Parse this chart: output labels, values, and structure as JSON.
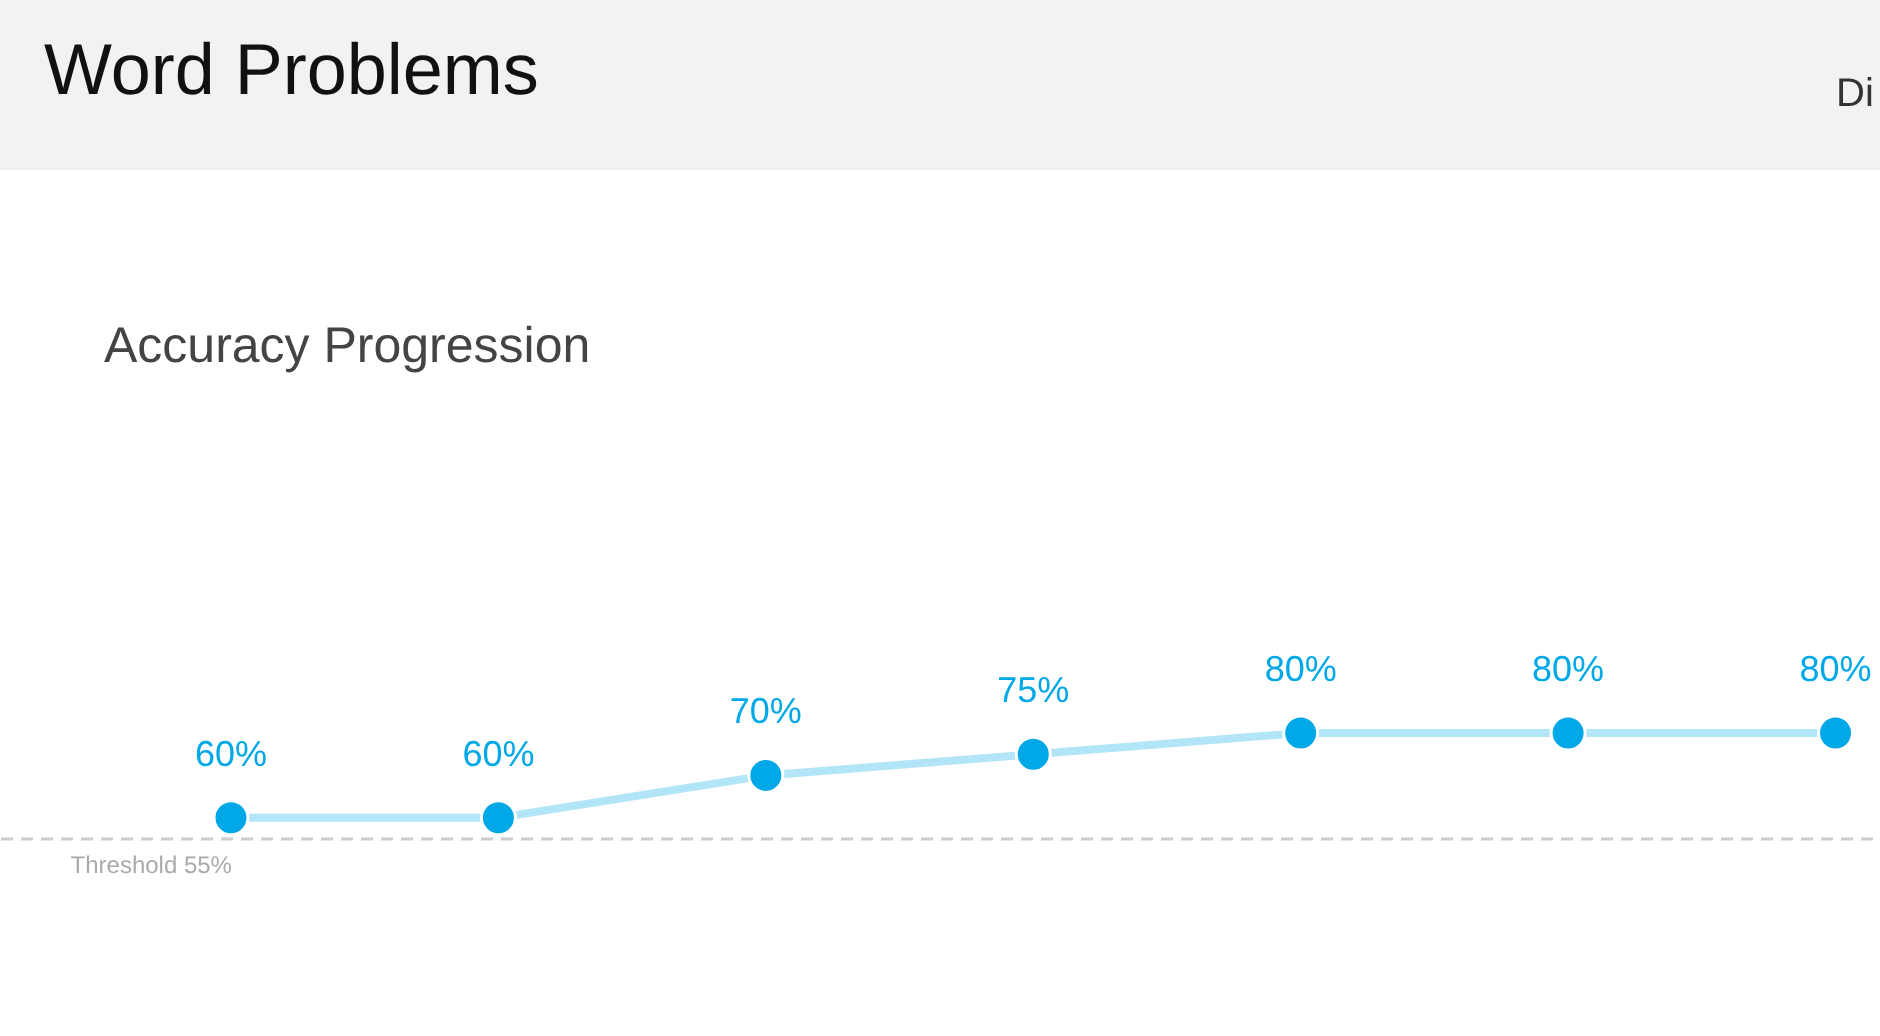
{
  "chart_data": {
    "type": "line",
    "title": "Word Problems",
    "subtitle": "Accuracy Progression",
    "annotations": [
      "Di"
    ],
    "categories": [
      null,
      null,
      null,
      null,
      null,
      null,
      null
    ],
    "series": [
      {
        "color": "#00a8e8",
        "values": [
          60,
          60,
          70,
          75,
          80,
          80,
          80
        ],
        "value_labels": [
          "60%",
          "60%",
          "70%",
          "75%",
          "80%",
          "80%",
          "80%"
        ]
      }
    ],
    "tick_labels": false,
    "grid": false,
    "marker": "circle",
    "line_style": "solid",
    "ref_lines": [
      {
        "axis": "y",
        "value": 55,
        "label": "Threshold 55%",
        "color": "#cccccc",
        "line_style": "dashed"
      }
    ]
  }
}
